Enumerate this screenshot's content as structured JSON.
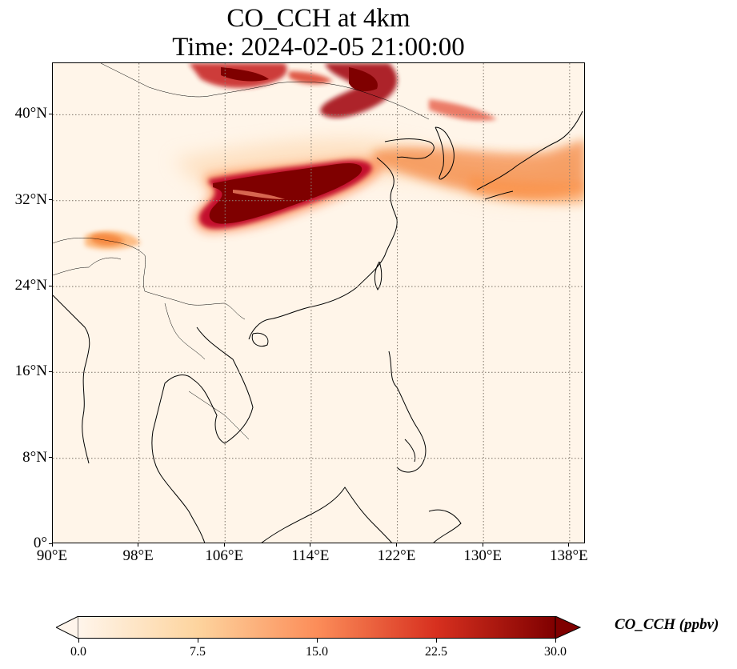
{
  "title": {
    "line1": "CO_CCH at 4km",
    "line2": "Time: 2024-02-05 21:00:00"
  },
  "map": {
    "lon_range": [
      90,
      139.5
    ],
    "lat_range": [
      0,
      44.8
    ],
    "gridlines": true,
    "colormap": [
      "#fff5eb",
      "#fdd49e",
      "#fc8d59",
      "#d7301f",
      "#7f0000"
    ]
  },
  "axes": {
    "lat_ticks": [
      {
        "value": 0,
        "label": "0°"
      },
      {
        "value": 8,
        "label": "8°N"
      },
      {
        "value": 16,
        "label": "16°N"
      },
      {
        "value": 24,
        "label": "24°N"
      },
      {
        "value": 32,
        "label": "32°N"
      },
      {
        "value": 40,
        "label": "40°N"
      }
    ],
    "lon_ticks": [
      {
        "value": 90,
        "label": "90°E"
      },
      {
        "value": 98,
        "label": "98°E"
      },
      {
        "value": 106,
        "label": "106°E"
      },
      {
        "value": 114,
        "label": "114°E"
      },
      {
        "value": 122,
        "label": "122°E"
      },
      {
        "value": 130,
        "label": "130°E"
      },
      {
        "value": 138,
        "label": "138°E"
      }
    ]
  },
  "colorbar": {
    "label": "CO_CCH (ppbv)",
    "min": 0,
    "max": 30,
    "extend": "both",
    "ticks": [
      {
        "value": 0,
        "label": "0.0"
      },
      {
        "value": 7.5,
        "label": "7.5"
      },
      {
        "value": 15,
        "label": "15.0"
      },
      {
        "value": 22.5,
        "label": "22.5"
      },
      {
        "value": 30,
        "label": "30.0"
      }
    ]
  }
}
